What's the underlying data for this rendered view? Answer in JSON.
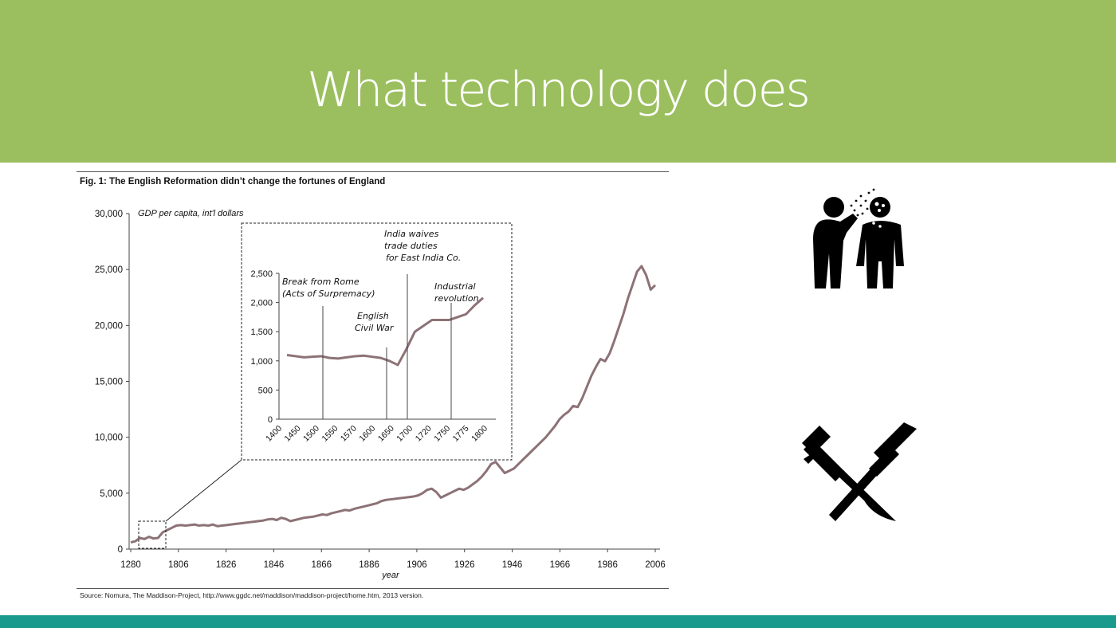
{
  "slide": {
    "title": "What technology does",
    "colors": {
      "banner": "#9bbf5f",
      "footer": "#1a9a8c",
      "line": "#8c7276"
    }
  },
  "figure": {
    "title": "Fig. 1: The English Reformation didn’t change the fortunes of England",
    "source": "Source: Nomura, The Maddison-Project, http://www.ggdc.net/maddison/maddison-project/home.htm, 2013 version."
  },
  "icons": [
    "sneezing-person-icon",
    "crossed-swords-icon"
  ],
  "chart_data": [
    {
      "type": "line",
      "ylabel": "GDP per capita, int'l dollars",
      "xlabel": "year",
      "ylim": [
        0,
        30000
      ],
      "yticks": [
        "0",
        "5,000",
        "10,000",
        "15,000",
        "20,000",
        "25,000",
        "30,000"
      ],
      "yticks_values": [
        0,
        5000,
        10000,
        15000,
        20000,
        25000,
        30000
      ],
      "xticks": [
        "1280",
        "1806",
        "1826",
        "1846",
        "1866",
        "1886",
        "1906",
        "1926",
        "1946",
        "1966",
        "1986",
        "2006"
      ],
      "grid": false,
      "series": [
        {
          "values": [
            600,
            700,
            1000,
            900,
            1100,
            950,
            1000,
            1500,
            1700,
            1900,
            2100,
            2150,
            2100,
            2150,
            2200,
            2100,
            2150,
            2100,
            2200,
            2050,
            2100,
            2150,
            2200,
            2250,
            2300,
            2350,
            2400,
            2450,
            2500,
            2550,
            2650,
            2700,
            2600,
            2800,
            2700,
            2500,
            2600,
            2700,
            2800,
            2850,
            2900,
            3000,
            3100,
            3050,
            3200,
            3300,
            3400,
            3500,
            3450,
            3600,
            3700,
            3800,
            3900,
            4000,
            4100,
            4300,
            4400,
            4450,
            4500,
            4550,
            4600,
            4650,
            4700,
            4800,
            5000,
            5300,
            5400,
            5100,
            4600,
            4800,
            5000,
            5200,
            5400,
            5300,
            5500,
            5800,
            6100,
            6500,
            7000,
            7600,
            7800,
            7300,
            6800,
            7000,
            7200,
            7600,
            8000,
            8400,
            8800,
            9200,
            9600,
            10000,
            10500,
            11000,
            11600,
            12000,
            12300,
            12800,
            12700,
            13500,
            14500,
            15500,
            16300,
            17000,
            16800,
            17500,
            18600,
            19800,
            21000,
            22400,
            23600,
            24800,
            25300,
            24500,
            23200,
            23600
          ]
        }
      ],
      "annotations": [
        "zoom box 1400-1800"
      ]
    },
    {
      "type": "line",
      "xticks": [
        "1400",
        "1450",
        "1500",
        "1550",
        "1570",
        "1600",
        "1650",
        "1700",
        "1720",
        "1750",
        "1775",
        "1800"
      ],
      "yticks": [
        "0",
        "500",
        "1,000",
        "1,500",
        "2,000",
        "2,500"
      ],
      "yticks_values": [
        0,
        500,
        1000,
        1500,
        2000,
        2500
      ],
      "ylim": [
        0,
        2500
      ],
      "series": [
        {
          "values": [
            1100,
            1080,
            1060,
            1070,
            1080,
            1050,
            1040,
            1060,
            1080,
            1090,
            1070,
            1050,
            1000,
            930,
            1200,
            1500,
            1600,
            1700,
            1700,
            1700,
            1750,
            1800,
            1950,
            2080
          ]
        }
      ],
      "events": [
        {
          "label": "Break from Rome\n(Acts of Surpremacy)",
          "at": 1534
        },
        {
          "label": "English\nCivil War",
          "at": 1642
        },
        {
          "label": "India waives\ntrade duties\nfor East India Co.",
          "at": 1700
        },
        {
          "label": "Industrial\nrevolution",
          "at": 1760
        }
      ]
    }
  ]
}
